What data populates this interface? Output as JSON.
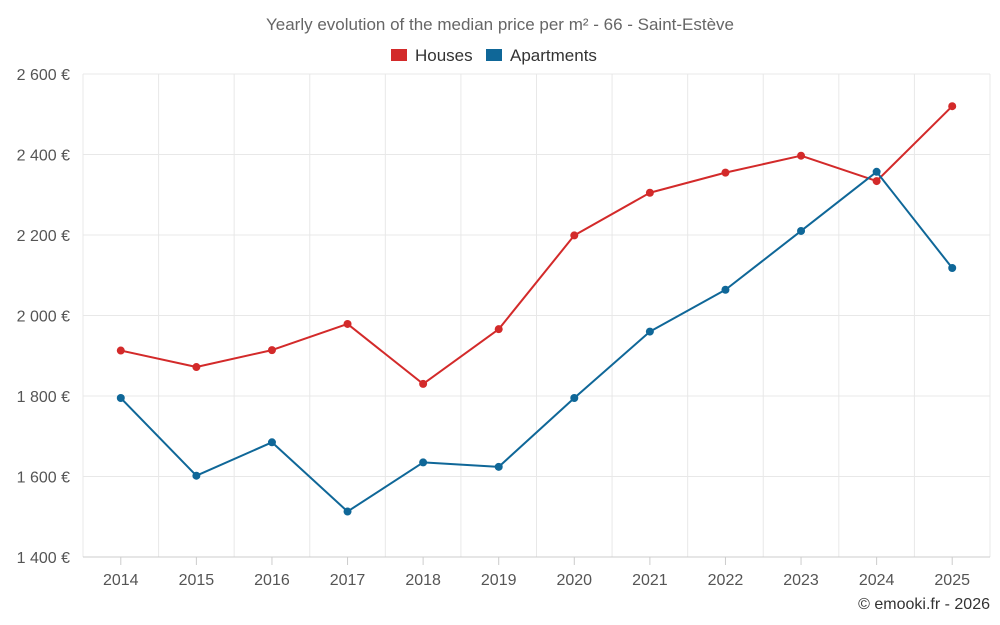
{
  "chart_data": {
    "type": "line",
    "title": "Yearly evolution of the median price per m² - 66 - Saint-Estève",
    "categories": [
      "2014",
      "2015",
      "2016",
      "2017",
      "2018",
      "2019",
      "2020",
      "2021",
      "2022",
      "2023",
      "2024",
      "2025"
    ],
    "series": [
      {
        "name": "Houses",
        "color": "#d32a2a",
        "values": [
          1913,
          1872,
          1914,
          1979,
          1830,
          1966,
          2199,
          2305,
          2355,
          2397,
          2334,
          2520
        ]
      },
      {
        "name": "Apartments",
        "color": "#0f6798",
        "values": [
          1795,
          1602,
          1685,
          1513,
          1635,
          1624,
          1795,
          1960,
          2064,
          2210,
          2357,
          2118
        ]
      }
    ],
    "ylim": [
      1400,
      2600
    ],
    "yticks": [
      1400,
      1600,
      1800,
      2000,
      2200,
      2400,
      2600
    ],
    "ytick_labels": [
      "1 400 €",
      "1 600 €",
      "1 800 €",
      "2 000 €",
      "2 200 €",
      "2 400 €",
      "2 600 €"
    ],
    "xlabel": "",
    "ylabel": "",
    "grid": true,
    "legend_position": "top-center"
  },
  "credit": "© emooki.fr - 2026"
}
